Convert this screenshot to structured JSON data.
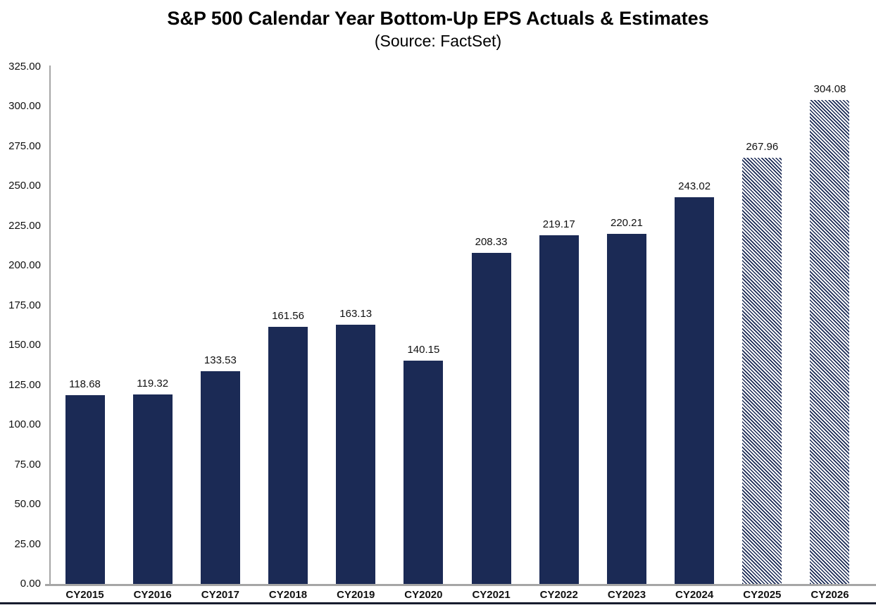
{
  "chart_data": {
    "type": "bar",
    "title": "S&P 500 Calendar Year Bottom-Up EPS Actuals & Estimates",
    "subtitle": "(Source: FactSet)",
    "categories": [
      "CY2015",
      "CY2016",
      "CY2017",
      "CY2018",
      "CY2019",
      "CY2020",
      "CY2021",
      "CY2022",
      "CY2023",
      "CY2024",
      "CY2025",
      "CY2026"
    ],
    "values": [
      118.68,
      119.32,
      133.53,
      161.56,
      163.13,
      140.15,
      208.33,
      219.17,
      220.21,
      243.02,
      267.96,
      304.08
    ],
    "is_estimate": [
      false,
      false,
      false,
      false,
      false,
      false,
      false,
      false,
      false,
      false,
      true,
      true
    ],
    "value_decimals": 2,
    "xlabel": "",
    "ylabel": "",
    "ylim": [
      0,
      325
    ],
    "ytick_step": 25,
    "ytick_labels": [
      "0.00",
      "25.00",
      "50.00",
      "75.00",
      "100.00",
      "125.00",
      "150.00",
      "175.00",
      "200.00",
      "225.00",
      "250.00",
      "275.00",
      "300.00",
      "325.00"
    ],
    "grid": false,
    "legend": "none",
    "style": {
      "bar_color": "#1b2a55",
      "estimate_fill": "diagonal-hatch",
      "hatch_color": "#1b2a55",
      "hatch_background": "#ffffff",
      "axis_line_color": "#a6a6a6",
      "text_color": "#111111",
      "bottom_rule_color": "#171c2e",
      "background": "#ffffff"
    }
  }
}
